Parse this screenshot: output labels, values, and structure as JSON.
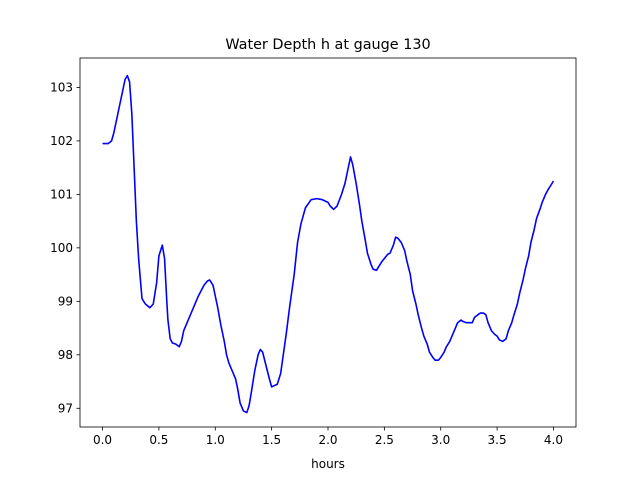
{
  "chart_data": {
    "type": "line",
    "title": "Water Depth h at gauge 130",
    "xlabel": "hours",
    "ylabel": "",
    "xlim": [
      -0.2,
      4.2
    ],
    "ylim": [
      96.65,
      103.55
    ],
    "xticks": [
      0.0,
      0.5,
      1.0,
      1.5,
      2.0,
      2.5,
      3.0,
      3.5,
      4.0
    ],
    "xtick_labels": [
      "0.0",
      "0.5",
      "1.0",
      "1.5",
      "2.0",
      "2.5",
      "3.0",
      "3.5",
      "4.0"
    ],
    "yticks": [
      97,
      98,
      99,
      100,
      101,
      102,
      103
    ],
    "ytick_labels": [
      "97",
      "98",
      "99",
      "100",
      "101",
      "102",
      "103"
    ],
    "grid": false,
    "legend": "none",
    "series": [
      {
        "color": "#0000ff",
        "x": [
          0.0,
          0.05,
          0.08,
          0.1,
          0.12,
          0.15,
          0.18,
          0.2,
          0.22,
          0.24,
          0.26,
          0.28,
          0.3,
          0.32,
          0.35,
          0.38,
          0.42,
          0.45,
          0.48,
          0.5,
          0.53,
          0.55,
          0.57,
          0.58,
          0.6,
          0.62,
          0.65,
          0.68,
          0.7,
          0.72,
          0.75,
          0.8,
          0.85,
          0.9,
          0.93,
          0.95,
          0.98,
          1.0,
          1.02,
          1.05,
          1.08,
          1.1,
          1.12,
          1.15,
          1.18,
          1.2,
          1.22,
          1.25,
          1.28,
          1.3,
          1.32,
          1.35,
          1.38,
          1.4,
          1.42,
          1.45,
          1.48,
          1.5,
          1.52,
          1.55,
          1.58,
          1.6,
          1.63,
          1.66,
          1.7,
          1.73,
          1.76,
          1.8,
          1.85,
          1.9,
          1.95,
          2.0,
          2.02,
          2.05,
          2.08,
          2.12,
          2.15,
          2.18,
          2.2,
          2.22,
          2.25,
          2.28,
          2.3,
          2.33,
          2.35,
          2.38,
          2.4,
          2.43,
          2.45,
          2.48,
          2.5,
          2.53,
          2.55,
          2.58,
          2.6,
          2.62,
          2.65,
          2.68,
          2.7,
          2.73,
          2.75,
          2.78,
          2.8,
          2.83,
          2.85,
          2.88,
          2.9,
          2.93,
          2.95,
          2.98,
          3.0,
          3.03,
          3.05,
          3.08,
          3.1,
          3.13,
          3.15,
          3.18,
          3.2,
          3.23,
          3.25,
          3.28,
          3.3,
          3.33,
          3.35,
          3.38,
          3.4,
          3.42,
          3.45,
          3.48,
          3.5,
          3.52,
          3.55,
          3.58,
          3.6,
          3.63,
          3.65,
          3.68,
          3.7,
          3.73,
          3.75,
          3.78,
          3.8,
          3.83,
          3.85,
          3.88,
          3.9,
          3.93,
          3.95,
          3.98,
          4.0
        ],
        "y": [
          101.95,
          101.95,
          102.0,
          102.15,
          102.35,
          102.65,
          102.95,
          103.15,
          103.22,
          103.1,
          102.5,
          101.5,
          100.5,
          99.8,
          99.05,
          98.95,
          98.88,
          98.95,
          99.35,
          99.85,
          100.05,
          99.8,
          99.0,
          98.65,
          98.3,
          98.22,
          98.2,
          98.15,
          98.25,
          98.45,
          98.6,
          98.85,
          99.1,
          99.3,
          99.38,
          99.4,
          99.3,
          99.1,
          98.9,
          98.55,
          98.25,
          98.0,
          97.85,
          97.7,
          97.55,
          97.35,
          97.1,
          96.95,
          96.92,
          97.05,
          97.3,
          97.7,
          98.0,
          98.1,
          98.05,
          97.8,
          97.55,
          97.4,
          97.42,
          97.45,
          97.65,
          97.95,
          98.4,
          98.9,
          99.5,
          100.1,
          100.45,
          100.75,
          100.9,
          100.92,
          100.9,
          100.85,
          100.78,
          100.72,
          100.78,
          101.0,
          101.2,
          101.5,
          101.7,
          101.55,
          101.2,
          100.8,
          100.5,
          100.15,
          99.9,
          99.7,
          99.6,
          99.58,
          99.65,
          99.75,
          99.8,
          99.88,
          99.9,
          100.05,
          100.2,
          100.18,
          100.1,
          99.95,
          99.75,
          99.5,
          99.2,
          98.95,
          98.75,
          98.5,
          98.35,
          98.2,
          98.05,
          97.95,
          97.9,
          97.9,
          97.95,
          98.05,
          98.15,
          98.25,
          98.35,
          98.5,
          98.6,
          98.65,
          98.62,
          98.6,
          98.6,
          98.6,
          98.7,
          98.75,
          98.78,
          98.78,
          98.75,
          98.6,
          98.45,
          98.38,
          98.35,
          98.28,
          98.25,
          98.3,
          98.45,
          98.6,
          98.75,
          98.95,
          99.15,
          99.4,
          99.6,
          99.85,
          100.1,
          100.35,
          100.55,
          100.72,
          100.85,
          101.0,
          101.08,
          101.18,
          101.25
        ]
      }
    ]
  }
}
